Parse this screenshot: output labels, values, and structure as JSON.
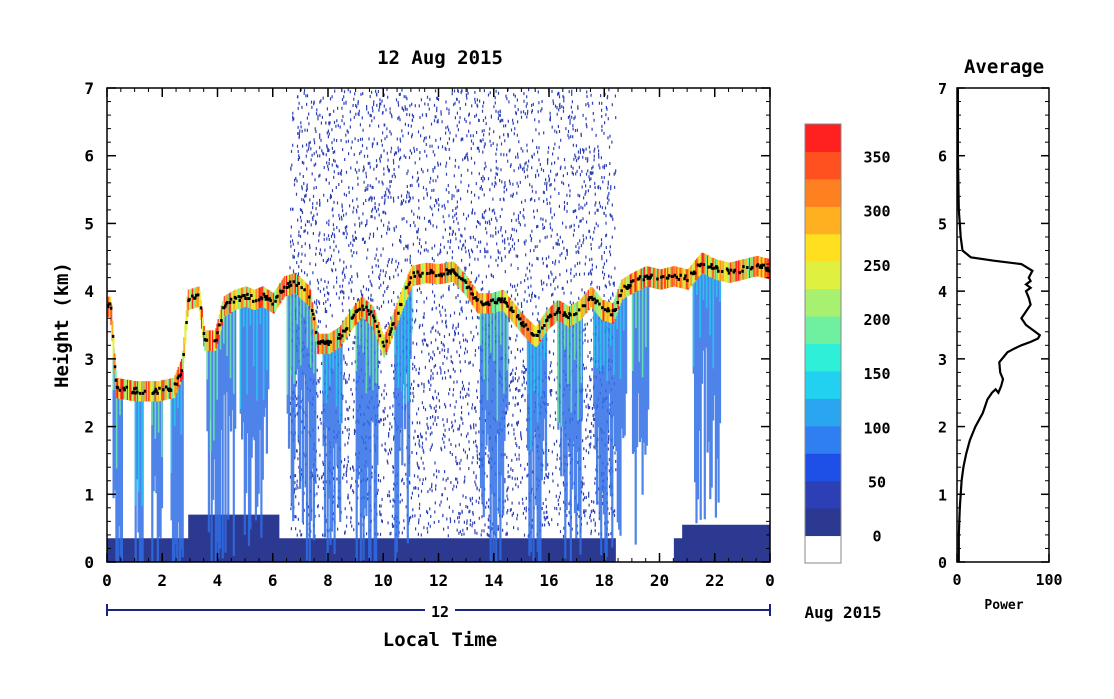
{
  "chart_data": [
    {
      "type": "heatmap",
      "title": "12 Aug 2015",
      "xlabel": "Local Time",
      "ylabel": "Height (km)",
      "x_ticks": [
        "0",
        "2",
        "4",
        "6",
        "8",
        "10",
        "12",
        "14",
        "16",
        "18",
        "20",
        "22",
        "0"
      ],
      "y_ticks": [
        "0",
        "1",
        "2",
        "3",
        "4",
        "5",
        "6",
        "7"
      ],
      "xlim": [
        0,
        24
      ],
      "ylim": [
        0,
        7
      ],
      "date_bar": {
        "day": "12",
        "month_year": "Aug 2015"
      },
      "colorbar": {
        "ticks": [
          "0",
          "50",
          "100",
          "150",
          "200",
          "250",
          "300",
          "350"
        ],
        "range": [
          0,
          380
        ],
        "colors": [
          "#ffffff",
          "#2b3990",
          "#2c3fb5",
          "#1e4fe6",
          "#2f7ff2",
          "#2aa6f0",
          "#22d1f0",
          "#2ef0d8",
          "#6ef0a0",
          "#a8f070",
          "#e0f040",
          "#ffe020",
          "#ffb020",
          "#ff8020",
          "#ff5020",
          "#ff2020"
        ]
      },
      "cloud_base_km": [
        [
          0.1,
          3.8
        ],
        [
          0.3,
          2.6
        ],
        [
          1.0,
          2.55
        ],
        [
          1.8,
          2.55
        ],
        [
          2.4,
          2.6
        ],
        [
          2.7,
          2.9
        ],
        [
          2.9,
          3.9
        ],
        [
          3.3,
          3.95
        ],
        [
          3.5,
          3.3
        ],
        [
          3.9,
          3.3
        ],
        [
          4.2,
          3.8
        ],
        [
          4.6,
          3.9
        ],
        [
          5.0,
          3.95
        ],
        [
          5.3,
          3.9
        ],
        [
          5.6,
          3.95
        ],
        [
          6.0,
          3.85
        ],
        [
          6.4,
          4.1
        ],
        [
          6.8,
          4.15
        ],
        [
          7.3,
          3.95
        ],
        [
          7.6,
          3.25
        ],
        [
          8.0,
          3.25
        ],
        [
          8.4,
          3.35
        ],
        [
          8.8,
          3.6
        ],
        [
          9.2,
          3.8
        ],
        [
          9.6,
          3.65
        ],
        [
          10.0,
          3.2
        ],
        [
          10.3,
          3.5
        ],
        [
          10.7,
          3.95
        ],
        [
          11.0,
          4.25
        ],
        [
          11.5,
          4.3
        ],
        [
          12.0,
          4.28
        ],
        [
          12.5,
          4.32
        ],
        [
          13.0,
          4.1
        ],
        [
          13.4,
          3.85
        ],
        [
          13.9,
          3.85
        ],
        [
          14.3,
          3.9
        ],
        [
          14.7,
          3.7
        ],
        [
          15.1,
          3.5
        ],
        [
          15.5,
          3.35
        ],
        [
          15.9,
          3.6
        ],
        [
          16.3,
          3.75
        ],
        [
          16.7,
          3.65
        ],
        [
          17.1,
          3.75
        ],
        [
          17.5,
          3.95
        ],
        [
          17.9,
          3.75
        ],
        [
          18.3,
          3.7
        ],
        [
          18.6,
          4.05
        ],
        [
          19.0,
          4.15
        ],
        [
          19.5,
          4.25
        ],
        [
          20.0,
          4.2
        ],
        [
          20.5,
          4.25
        ],
        [
          21.0,
          4.2
        ],
        [
          21.5,
          4.45
        ],
        [
          22.0,
          4.35
        ],
        [
          22.5,
          4.3
        ],
        [
          23.0,
          4.35
        ],
        [
          23.5,
          4.4
        ],
        [
          24.0,
          4.35
        ]
      ]
    },
    {
      "type": "line",
      "title": "Average",
      "xlabel": "Power",
      "x_ticks": [
        "0",
        "100"
      ],
      "y_ticks": [
        "0",
        "1",
        "2",
        "3",
        "4",
        "5",
        "6",
        "7"
      ],
      "xlim": [
        0,
        100
      ],
      "ylim": [
        0,
        7
      ],
      "x": [
        2,
        2,
        3,
        4,
        5,
        7,
        10,
        14,
        20,
        28,
        33,
        38,
        42,
        45,
        48,
        50,
        47,
        46,
        52,
        55,
        58,
        62,
        70,
        80,
        88,
        90,
        85,
        80,
        75,
        70,
        75,
        80,
        78,
        75,
        80,
        75,
        80,
        78,
        82,
        70,
        40,
        15,
        6,
        4,
        3,
        2,
        1,
        1
      ],
      "y": [
        0,
        0.4,
        0.8,
        1.0,
        1.2,
        1.4,
        1.6,
        1.8,
        2.0,
        2.2,
        2.4,
        2.5,
        2.55,
        2.5,
        2.6,
        2.7,
        2.8,
        2.95,
        3.05,
        3.1,
        3.12,
        3.15,
        3.2,
        3.25,
        3.3,
        3.35,
        3.4,
        3.45,
        3.5,
        3.6,
        3.7,
        3.8,
        3.9,
        4.0,
        4.05,
        4.1,
        4.15,
        4.2,
        4.3,
        4.4,
        4.45,
        4.5,
        4.6,
        4.8,
        5.0,
        5.2,
        6.0,
        7.0
      ]
    }
  ]
}
